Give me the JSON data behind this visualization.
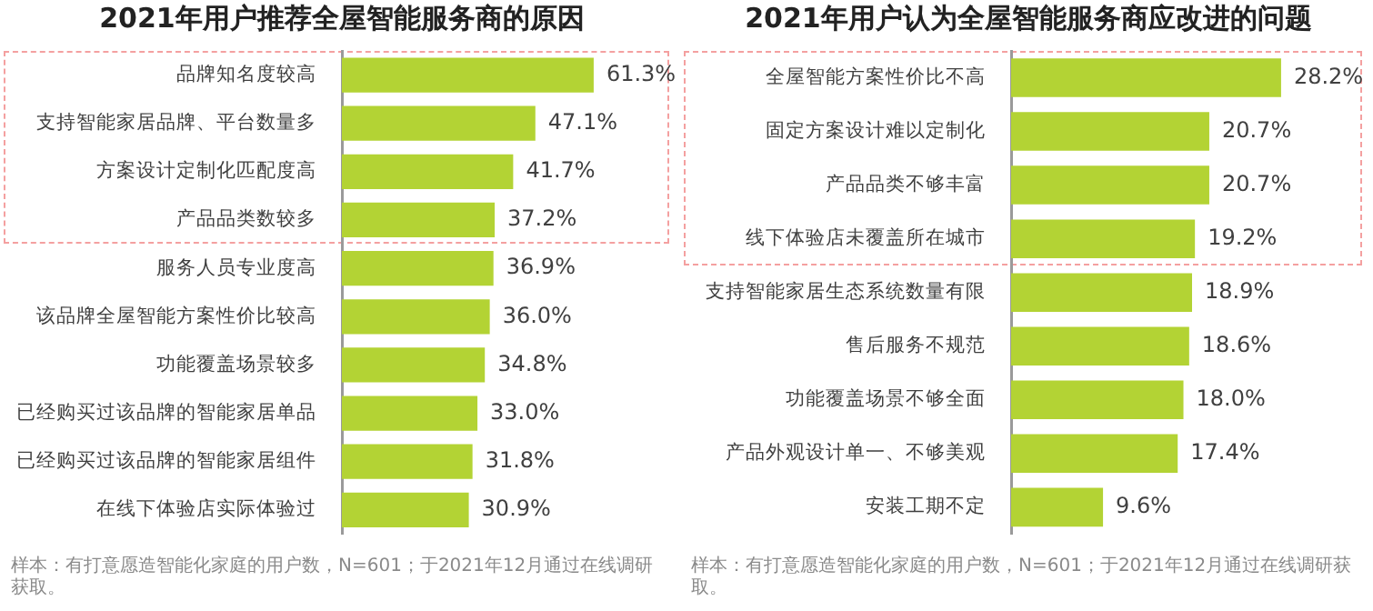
{
  "chart_data": [
    {
      "type": "bar",
      "orientation": "horizontal",
      "title": "2021年用户推荐全屋智能服务商的原因",
      "categories": [
        "品牌知名度较高",
        "支持智能家居品牌、平台数量多",
        "方案设计定制化匹配度高",
        "产品品类数较多",
        "服务人员专业度高",
        "该品牌全屋智能方案性价比较高",
        "功能覆盖场景较多",
        "已经购买过该品牌的智能家居单品",
        "已经购买过该品牌的智能家居组件",
        "在线下体验店实际体验过"
      ],
      "values": [
        61.3,
        47.1,
        41.7,
        37.2,
        36.9,
        36.0,
        34.8,
        33.0,
        31.8,
        30.9
      ],
      "value_labels": [
        "61.3%",
        "47.1%",
        "41.7%",
        "37.2%",
        "36.9%",
        "36.0%",
        "34.8%",
        "33.0%",
        "31.8%",
        "30.9%"
      ],
      "color": "#b3d334",
      "tick_labels": "y",
      "annotations": [
        "样本：有打意愿造智能化家庭的用户数，N=601；于2021年12月通过在线调研获取。"
      ]
    },
    {
      "type": "bar",
      "orientation": "horizontal",
      "title": "2021年用户认为全屋智能服务商应改进的问题",
      "categories": [
        "全屋智能方案性价比不高",
        "固定方案设计难以定制化",
        "产品品类不够丰富",
        "线下体验店未覆盖所在城市",
        "支持智能家居生态系统数量有限",
        "售后服务不规范",
        "功能覆盖场景不够全面",
        "产品外观设计单一、不够美观",
        "安装工期不定"
      ],
      "values": [
        28.2,
        20.7,
        20.7,
        19.2,
        18.9,
        18.6,
        18.0,
        17.4,
        9.6
      ],
      "value_labels": [
        "28.2%",
        "20.7%",
        "20.7%",
        "19.2%",
        "18.9%",
        "18.6%",
        "18.0%",
        "17.4%",
        "9.6%"
      ],
      "color": "#b3d334",
      "tick_labels": "y",
      "annotations": [
        "样本：有打意愿造智能化家庭的用户数，N=601；于2021年12月通过在线调研获取。"
      ]
    }
  ]
}
